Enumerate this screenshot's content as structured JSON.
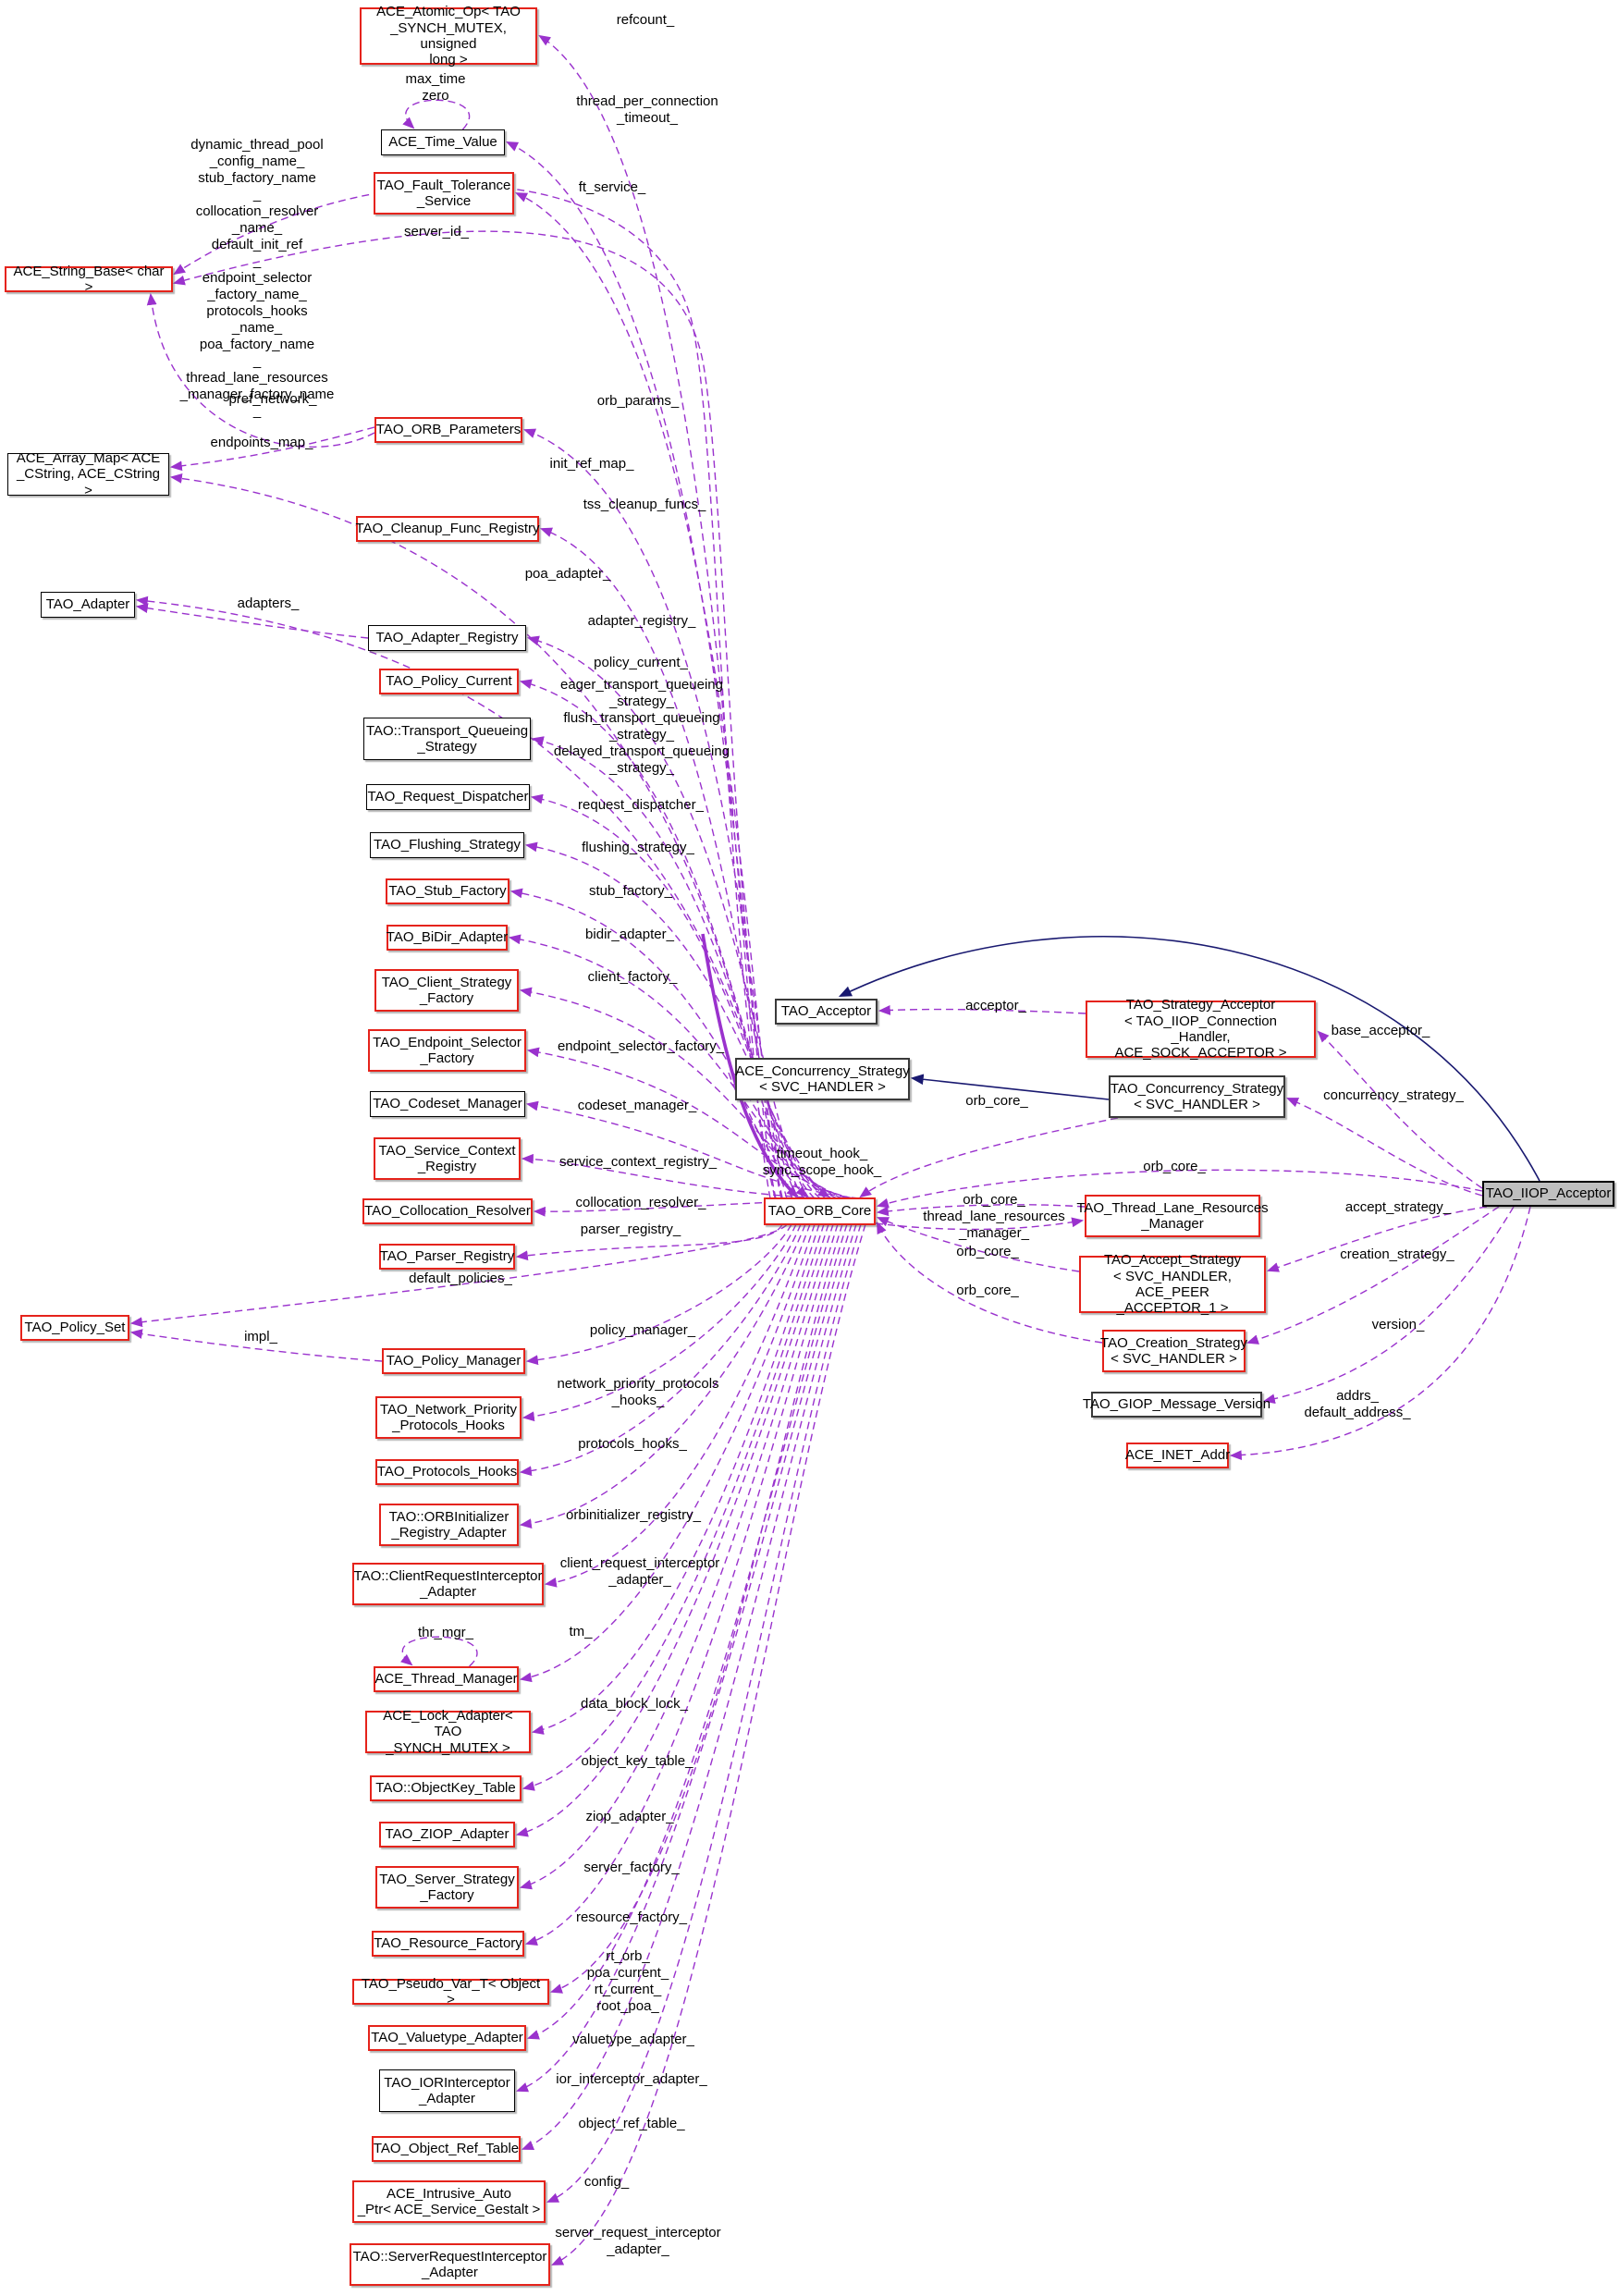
{
  "diagram": {
    "kind": "collaboration-graph",
    "colors": {
      "usage_edge": "#9a32cd",
      "inheritance_edge": "#191970",
      "linked_class_border": "#e5231b",
      "plain_class_border": "#000000",
      "main_class_fill": "#bfbfbf",
      "background": "#ffffff"
    },
    "nodes": [
      {
        "id": "atomic",
        "label": "ACE_Atomic_Op< TAO\n_SYNCH_MUTEX, unsigned\nlong >"
      },
      {
        "id": "timevalue",
        "label": "ACE_Time_Value"
      },
      {
        "id": "fault",
        "label": "TAO_Fault_Tolerance\n_Service"
      },
      {
        "id": "stringbase",
        "label": "ACE_String_Base< char >"
      },
      {
        "id": "orbparams",
        "label": "TAO_ORB_Parameters"
      },
      {
        "id": "arraymap",
        "label": "ACE_Array_Map< ACE\n_CString, ACE_CString >"
      },
      {
        "id": "cleanup",
        "label": "TAO_Cleanup_Func_Registry"
      },
      {
        "id": "adapter",
        "label": "TAO_Adapter"
      },
      {
        "id": "adapterreg",
        "label": "TAO_Adapter_Registry"
      },
      {
        "id": "policycur",
        "label": "TAO_Policy_Current"
      },
      {
        "id": "transportq",
        "label": "TAO::Transport_Queueing\n_Strategy"
      },
      {
        "id": "reqdisp",
        "label": "TAO_Request_Dispatcher"
      },
      {
        "id": "flushing",
        "label": "TAO_Flushing_Strategy"
      },
      {
        "id": "stubfac",
        "label": "TAO_Stub_Factory"
      },
      {
        "id": "bidir",
        "label": "TAO_BiDir_Adapter"
      },
      {
        "id": "clientstrat",
        "label": "TAO_Client_Strategy\n_Factory"
      },
      {
        "id": "endpointsel",
        "label": "TAO_Endpoint_Selector\n_Factory"
      },
      {
        "id": "codeset",
        "label": "TAO_Codeset_Manager"
      },
      {
        "id": "svcctx",
        "label": "TAO_Service_Context\n_Registry"
      },
      {
        "id": "colloc",
        "label": "TAO_Collocation_Resolver"
      },
      {
        "id": "parser",
        "label": "TAO_Parser_Registry"
      },
      {
        "id": "policyset",
        "label": "TAO_Policy_Set"
      },
      {
        "id": "policymgr",
        "label": "TAO_Policy_Manager"
      },
      {
        "id": "netpriority",
        "label": "TAO_Network_Priority\n_Protocols_Hooks"
      },
      {
        "id": "protohooks",
        "label": "TAO_Protocols_Hooks"
      },
      {
        "id": "orbinit",
        "label": "TAO::ORBInitializer\n_Registry_Adapter"
      },
      {
        "id": "clientreq",
        "label": "TAO::ClientRequestInterceptor\n_Adapter"
      },
      {
        "id": "thrmgr",
        "label": "ACE_Thread_Manager"
      },
      {
        "id": "lockadapter",
        "label": "ACE_Lock_Adapter< TAO\n_SYNCH_MUTEX >"
      },
      {
        "id": "objectkey",
        "label": "TAO::ObjectKey_Table"
      },
      {
        "id": "ziop",
        "label": "TAO_ZIOP_Adapter"
      },
      {
        "id": "serverstrat",
        "label": "TAO_Server_Strategy\n_Factory"
      },
      {
        "id": "resourcefac",
        "label": "TAO_Resource_Factory"
      },
      {
        "id": "pseudovar",
        "label": "TAO_Pseudo_Var_T< Object >"
      },
      {
        "id": "valuetype",
        "label": "TAO_Valuetype_Adapter"
      },
      {
        "id": "iorint",
        "label": "TAO_IORInterceptor\n_Adapter"
      },
      {
        "id": "objref",
        "label": "TAO_Object_Ref_Table"
      },
      {
        "id": "intrusive",
        "label": "ACE_Intrusive_Auto\n_Ptr< ACE_Service_Gestalt >"
      },
      {
        "id": "serverreq",
        "label": "TAO::ServerRequestInterceptor\n_Adapter"
      },
      {
        "id": "acceptor",
        "label": "TAO_Acceptor"
      },
      {
        "id": "aceconc",
        "label": "ACE_Concurrency_Strategy\n< SVC_HANDLER >"
      },
      {
        "id": "core",
        "label": "TAO_ORB_Core"
      },
      {
        "id": "stratacceptor",
        "label": "TAO_Strategy_Acceptor\n< TAO_IIOP_Connection\n_Handler, ACE_SOCK_ACCEPTOR >"
      },
      {
        "id": "taoconc",
        "label": "TAO_Concurrency_Strategy\n< SVC_HANDLER >"
      },
      {
        "id": "threadlane",
        "label": "TAO_Thread_Lane_Resources\n_Manager"
      },
      {
        "id": "acceptstrat",
        "label": "TAO_Accept_Strategy\n< SVC_HANDLER, ACE_PEER\n_ACCEPTOR_1 >"
      },
      {
        "id": "creationstrat",
        "label": "TAO_Creation_Strategy\n< SVC_HANDLER >"
      },
      {
        "id": "giop",
        "label": "TAO_GIOP_Message_Version"
      },
      {
        "id": "inetaddr",
        "label": "ACE_INET_Addr"
      },
      {
        "id": "iiop",
        "label": "TAO_IIOP_Acceptor"
      }
    ],
    "edge_labels": [
      {
        "text": "refcount_"
      },
      {
        "text": "max_time\nzero"
      },
      {
        "text": "thread_per_connection\n_timeout_"
      },
      {
        "text": "ft_service_"
      },
      {
        "text": "server_id_"
      },
      {
        "text": "dynamic_thread_pool\n_config_name_\nstub_factory_name\n_\ncollocation_resolver\n_name_\ndefault_init_ref\n_\nendpoint_selector\n_factory_name_\nprotocols_hooks\n_name_\npoa_factory_name\n_\nthread_lane_resources\n_manager_factory_name\n_"
      },
      {
        "text": "pref_network_"
      },
      {
        "text": "orb_params_"
      },
      {
        "text": "endpoints_map_"
      },
      {
        "text": "init_ref_map_"
      },
      {
        "text": "tss_cleanup_funcs_"
      },
      {
        "text": "poa_adapter_"
      },
      {
        "text": "adapters_"
      },
      {
        "text": "adapter_registry_"
      },
      {
        "text": "policy_current_"
      },
      {
        "text": "eager_transport_queueing\n_strategy_\nflush_transport_queueing\n_strategy_\ndelayed_transport_queueing\n_strategy_"
      },
      {
        "text": "request_dispatcher_"
      },
      {
        "text": "flushing_strategy_"
      },
      {
        "text": "stub_factory_"
      },
      {
        "text": "bidir_adapter_"
      },
      {
        "text": "client_factory_"
      },
      {
        "text": "endpoint_selector_factory_"
      },
      {
        "text": "codeset_manager_"
      },
      {
        "text": "service_context_registry_"
      },
      {
        "text": "collocation_resolver_"
      },
      {
        "text": "parser_registry_"
      },
      {
        "text": "default_policies_"
      },
      {
        "text": "impl_"
      },
      {
        "text": "policy_manager_"
      },
      {
        "text": "network_priority_protocols\n_hooks_"
      },
      {
        "text": "protocols_hooks_"
      },
      {
        "text": "orbinitializer_registry_"
      },
      {
        "text": "client_request_interceptor\n_adapter_"
      },
      {
        "text": "tm_"
      },
      {
        "text": "thr_mgr_"
      },
      {
        "text": "data_block_lock_"
      },
      {
        "text": "object_key_table_"
      },
      {
        "text": "ziop_adapter_"
      },
      {
        "text": "server_factory_"
      },
      {
        "text": "resource_factory_"
      },
      {
        "text": "rt_orb_\npoa_current_\nrt_current_\nroot_poa_"
      },
      {
        "text": "valuetype_adapter_"
      },
      {
        "text": "ior_interceptor_adapter_"
      },
      {
        "text": "object_ref_table_"
      },
      {
        "text": "config_"
      },
      {
        "text": "server_request_interceptor\n_adapter_"
      },
      {
        "text": "timeout_hook_\nsync_scope_hook_"
      },
      {
        "text": "acceptor_"
      },
      {
        "text": "orb_core_"
      },
      {
        "text": "base_acceptor_"
      },
      {
        "text": "concurrency_strategy_"
      },
      {
        "text": "orb_core_"
      },
      {
        "text": "orb_core_\nthread_lane_resources\n_manager_"
      },
      {
        "text": "orb_core_"
      },
      {
        "text": "orb_core_"
      },
      {
        "text": "accept_strategy_"
      },
      {
        "text": "creation_strategy_"
      },
      {
        "text": "version_"
      },
      {
        "text": "addrs_\ndefault_address_"
      }
    ]
  }
}
